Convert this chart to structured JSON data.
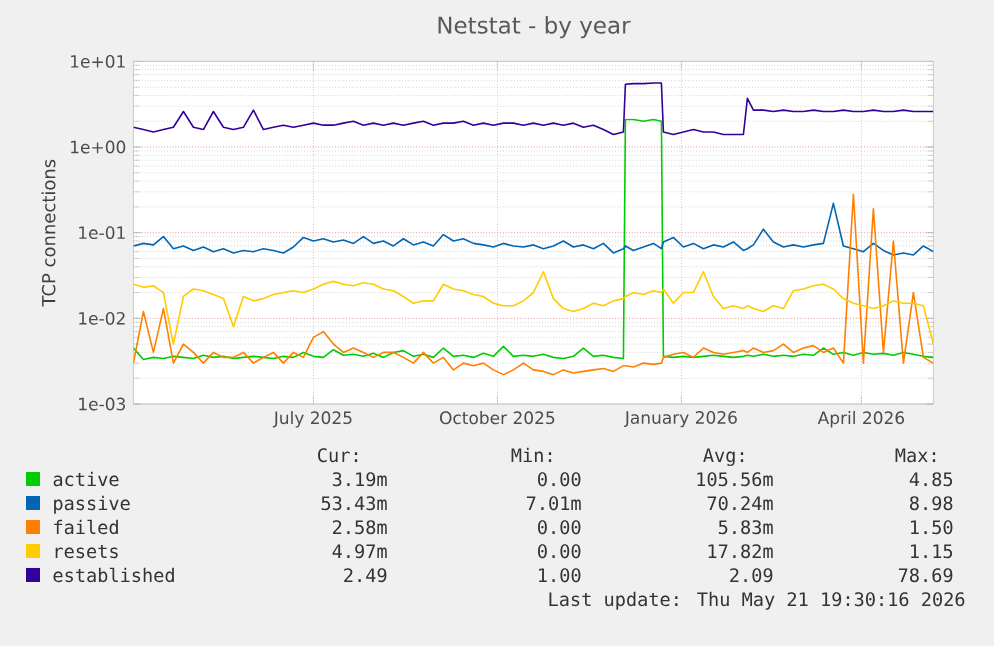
{
  "chart_data": {
    "type": "line",
    "title": "Netstat - by year",
    "ylabel": "TCP connections",
    "log": "y",
    "grid": true,
    "legend": "bottom",
    "xlim": [
      "2025-04-02",
      "2026-05-07"
    ],
    "xticks": [
      {
        "value": "2025-07-01",
        "label": "July 2025"
      },
      {
        "value": "2025-10-01",
        "label": "October 2025"
      },
      {
        "value": "2026-01-01",
        "label": "January 2026"
      },
      {
        "value": "2026-04-01",
        "label": "April 2026"
      }
    ],
    "ylim": [
      0.001,
      10
    ],
    "yticks": [
      {
        "value": 0.001,
        "label": "1e-03"
      },
      {
        "value": 0.01,
        "label": "1e-02"
      },
      {
        "value": 0.1,
        "label": "1e-01"
      },
      {
        "value": 1,
        "label": "1e+00"
      },
      {
        "value": 10,
        "label": "1e+01"
      }
    ],
    "x": [
      "2025-04-02",
      "2025-04-07",
      "2025-04-12",
      "2025-04-17",
      "2025-04-22",
      "2025-04-27",
      "2025-05-02",
      "2025-05-07",
      "2025-05-12",
      "2025-05-17",
      "2025-05-22",
      "2025-05-27",
      "2025-06-01",
      "2025-06-06",
      "2025-06-11",
      "2025-06-16",
      "2025-06-21",
      "2025-06-26",
      "2025-07-01",
      "2025-07-06",
      "2025-07-11",
      "2025-07-16",
      "2025-07-21",
      "2025-07-26",
      "2025-07-31",
      "2025-08-05",
      "2025-08-10",
      "2025-08-15",
      "2025-08-20",
      "2025-08-25",
      "2025-08-30",
      "2025-09-04",
      "2025-09-09",
      "2025-09-14",
      "2025-09-19",
      "2025-09-24",
      "2025-09-29",
      "2025-10-04",
      "2025-10-09",
      "2025-10-14",
      "2025-10-19",
      "2025-10-24",
      "2025-10-29",
      "2025-11-03",
      "2025-11-08",
      "2025-11-13",
      "2025-11-18",
      "2025-11-23",
      "2025-11-28",
      "2025-12-03",
      "2025-12-04",
      "2025-12-08",
      "2025-12-13",
      "2025-12-18",
      "2025-12-22",
      "2025-12-23",
      "2025-12-28",
      "2026-01-02",
      "2026-01-07",
      "2026-01-12",
      "2026-01-17",
      "2026-01-22",
      "2026-01-27",
      "2026-02-01",
      "2026-02-03",
      "2026-02-06",
      "2026-02-11",
      "2026-02-16",
      "2026-02-21",
      "2026-02-26",
      "2026-03-03",
      "2026-03-08",
      "2026-03-13",
      "2026-03-18",
      "2026-03-23",
      "2026-03-28",
      "2026-04-02",
      "2026-04-07",
      "2026-04-12",
      "2026-04-17",
      "2026-04-22",
      "2026-04-27",
      "2026-05-02",
      "2026-05-07"
    ],
    "series": [
      {
        "name": "active",
        "color": "#00cc00",
        "values": [
          0.0045,
          0.0033,
          0.0035,
          0.0034,
          0.0036,
          0.0035,
          0.0034,
          0.0037,
          0.0035,
          0.0036,
          0.0034,
          0.0035,
          0.0036,
          0.0035,
          0.0034,
          0.0036,
          0.0035,
          0.004,
          0.0036,
          0.0035,
          0.0043,
          0.0037,
          0.0038,
          0.0036,
          0.0039,
          0.0035,
          0.004,
          0.0042,
          0.0036,
          0.0038,
          0.0035,
          0.0045,
          0.0036,
          0.0037,
          0.0035,
          0.0039,
          0.0036,
          0.0047,
          0.0036,
          0.0037,
          0.0036,
          0.0038,
          0.0035,
          0.0034,
          0.0036,
          0.0045,
          0.0036,
          0.0037,
          0.0035,
          0.0034,
          2.1,
          2.1,
          2.0,
          2.1,
          2.0,
          0.0036,
          0.0035,
          0.0036,
          0.0035,
          0.0036,
          0.0037,
          0.0036,
          0.0035,
          0.0036,
          0.0037,
          0.0036,
          0.0038,
          0.0036,
          0.0037,
          0.0036,
          0.0038,
          0.0037,
          0.0045,
          0.0038,
          0.004,
          0.0037,
          0.004,
          0.0038,
          0.0039,
          0.0037,
          0.004,
          0.0038,
          0.0036,
          0.0035
        ]
      },
      {
        "name": "passive",
        "color": "#0066b3",
        "values": [
          0.07,
          0.075,
          0.072,
          0.09,
          0.065,
          0.07,
          0.062,
          0.068,
          0.06,
          0.065,
          0.058,
          0.062,
          0.06,
          0.065,
          0.062,
          0.058,
          0.068,
          0.088,
          0.08,
          0.085,
          0.078,
          0.082,
          0.075,
          0.09,
          0.075,
          0.08,
          0.07,
          0.085,
          0.072,
          0.078,
          0.07,
          0.095,
          0.08,
          0.085,
          0.075,
          0.072,
          0.068,
          0.075,
          0.07,
          0.068,
          0.072,
          0.065,
          0.07,
          0.08,
          0.068,
          0.072,
          0.065,
          0.075,
          0.058,
          0.065,
          0.07,
          0.062,
          0.068,
          0.075,
          0.065,
          0.078,
          0.088,
          0.068,
          0.075,
          0.065,
          0.072,
          0.068,
          0.078,
          0.062,
          0.065,
          0.072,
          0.11,
          0.078,
          0.068,
          0.072,
          0.068,
          0.072,
          0.075,
          0.22,
          0.07,
          0.065,
          0.06,
          0.075,
          0.062,
          0.055,
          0.058,
          0.055,
          0.07,
          0.06
        ]
      },
      {
        "name": "failed",
        "color": "#ff8000",
        "values": [
          0.003,
          0.012,
          0.004,
          0.013,
          0.003,
          0.005,
          0.004,
          0.003,
          0.004,
          0.0035,
          0.0035,
          0.004,
          0.003,
          0.0035,
          0.004,
          0.003,
          0.004,
          0.0035,
          0.006,
          0.007,
          0.005,
          0.004,
          0.0045,
          0.004,
          0.0035,
          0.004,
          0.004,
          0.0035,
          0.003,
          0.004,
          0.003,
          0.0035,
          0.0025,
          0.003,
          0.0028,
          0.003,
          0.0025,
          0.0022,
          0.0025,
          0.003,
          0.0025,
          0.0024,
          0.0022,
          0.0025,
          0.0023,
          0.0024,
          0.0025,
          0.0026,
          0.0024,
          0.0028,
          0.0028,
          0.0027,
          0.003,
          0.0029,
          0.003,
          0.0035,
          0.0038,
          0.004,
          0.0035,
          0.0045,
          0.004,
          0.0038,
          0.004,
          0.0042,
          0.004,
          0.0045,
          0.004,
          0.0042,
          0.005,
          0.004,
          0.0045,
          0.0048,
          0.004,
          0.0045,
          0.003,
          0.28,
          0.003,
          0.19,
          0.004,
          0.08,
          0.003,
          0.02,
          0.0035,
          0.003
        ]
      },
      {
        "name": "resets",
        "color": "#ffcc00",
        "values": [
          0.025,
          0.023,
          0.024,
          0.02,
          0.005,
          0.018,
          0.022,
          0.021,
          0.019,
          0.017,
          0.008,
          0.018,
          0.016,
          0.017,
          0.019,
          0.02,
          0.021,
          0.02,
          0.022,
          0.025,
          0.027,
          0.025,
          0.024,
          0.026,
          0.025,
          0.022,
          0.021,
          0.018,
          0.015,
          0.016,
          0.016,
          0.025,
          0.022,
          0.021,
          0.019,
          0.018,
          0.015,
          0.014,
          0.014,
          0.016,
          0.02,
          0.035,
          0.017,
          0.013,
          0.012,
          0.013,
          0.015,
          0.014,
          0.016,
          0.017,
          0.018,
          0.02,
          0.019,
          0.021,
          0.02,
          0.022,
          0.015,
          0.02,
          0.02,
          0.035,
          0.018,
          0.013,
          0.014,
          0.013,
          0.014,
          0.013,
          0.012,
          0.014,
          0.013,
          0.021,
          0.022,
          0.024,
          0.025,
          0.022,
          0.017,
          0.015,
          0.014,
          0.013,
          0.014,
          0.016,
          0.015,
          0.015,
          0.014,
          0.005
        ]
      },
      {
        "name": "established",
        "color": "#330099",
        "values": [
          1.7,
          1.6,
          1.5,
          1.6,
          1.7,
          2.6,
          1.7,
          1.6,
          2.6,
          1.7,
          1.6,
          1.7,
          2.7,
          1.6,
          1.7,
          1.8,
          1.7,
          1.8,
          1.9,
          1.8,
          1.8,
          1.9,
          2.0,
          1.8,
          1.9,
          1.8,
          1.9,
          1.8,
          1.9,
          2.0,
          1.8,
          1.9,
          1.9,
          2.0,
          1.8,
          1.9,
          1.8,
          1.9,
          1.9,
          1.8,
          1.9,
          1.8,
          1.9,
          1.8,
          1.9,
          1.7,
          1.8,
          1.6,
          1.4,
          1.5,
          5.4,
          5.5,
          5.5,
          5.6,
          5.6,
          1.5,
          1.4,
          1.5,
          1.6,
          1.5,
          1.5,
          1.4,
          1.4,
          1.4,
          3.7,
          2.7,
          2.7,
          2.6,
          2.7,
          2.6,
          2.6,
          2.7,
          2.6,
          2.6,
          2.7,
          2.6,
          2.6,
          2.7,
          2.6,
          2.6,
          2.7,
          2.6,
          2.6,
          2.6
        ]
      }
    ],
    "annotations": [
      "Cur:",
      "Min:",
      "Avg:",
      "Max:",
      "3.19m",
      "0.00",
      "105.56m",
      "4.85",
      "53.43m",
      "7.01m",
      "70.24m",
      "8.98",
      "2.58m",
      "0.00",
      "5.83m",
      "1.50",
      "4.97m",
      "0.00",
      "17.82m",
      "1.15",
      "2.49",
      "1.00",
      "2.09",
      "78.69",
      "Last update: Thu May 21 19:30:16 2026"
    ]
  }
}
